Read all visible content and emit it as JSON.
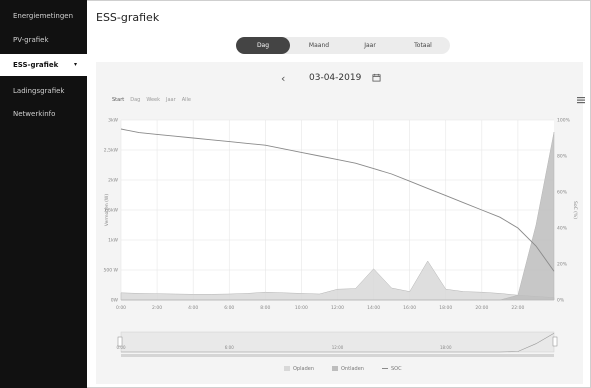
{
  "sidebar": {
    "items": [
      {
        "label": "Energiemetingen",
        "active": false
      },
      {
        "label": "PV-grafiek",
        "active": false
      },
      {
        "label": "ESS-grafiek",
        "active": true
      },
      {
        "label": "Ladingsgrafiek",
        "active": false
      },
      {
        "label": "Netwerkinfo",
        "active": false
      }
    ],
    "active_caret": "▾"
  },
  "page": {
    "title": "ESS-grafiek"
  },
  "tabs": [
    {
      "label": "Dag",
      "active": true
    },
    {
      "label": "Maand",
      "active": false
    },
    {
      "label": "Jaar",
      "active": false
    },
    {
      "label": "Totaal",
      "active": false
    }
  ],
  "date_nav": {
    "prev": "‹",
    "date": "03-04-2019",
    "calendar_icon": "calendar-icon"
  },
  "chart_toolbar": {
    "zoom_options": [
      "Start",
      "Dag",
      "Week",
      "Jaar",
      "Alle"
    ],
    "menu_icon": "hamburger-menu-icon"
  },
  "colors": {
    "sidebar_bg": "#111111",
    "tab_active": "#444444",
    "line": "#8a8a8a",
    "area": "#cfcfcf"
  },
  "chart_data": {
    "type": "area",
    "x_ticks": [
      "0:00",
      "2:00",
      "4:00",
      "6:00",
      "8:00",
      "10:00",
      "12:00",
      "14:00",
      "16:00",
      "18:00",
      "20:00",
      "22:00"
    ],
    "y_left_ticks": [
      "0W",
      "500 W",
      "1kW",
      "1,5kW",
      "2kW",
      "2,5kW",
      "3kW"
    ],
    "y_right_ticks": [
      "0%",
      "20%",
      "40%",
      "60%",
      "80%",
      "100%"
    ],
    "ylabel_left": "Vermogen (W)",
    "ylabel_right": "SoC (%)",
    "x_hours": [
      0,
      1,
      2,
      3,
      4,
      5,
      6,
      7,
      8,
      9,
      10,
      11,
      12,
      13,
      14,
      15,
      16,
      17,
      18,
      19,
      20,
      21,
      22,
      23,
      24
    ],
    "series": [
      {
        "name": "Opladen",
        "kind": "area",
        "values": [
          120,
          110,
          105,
          100,
          95,
          95,
          100,
          110,
          130,
          120,
          110,
          100,
          180,
          190,
          520,
          200,
          140,
          650,
          180,
          140,
          130,
          110,
          80,
          60,
          40
        ]
      },
      {
        "name": "Ontladen",
        "kind": "area",
        "values": [
          0,
          0,
          0,
          0,
          0,
          0,
          0,
          0,
          0,
          0,
          0,
          0,
          0,
          0,
          0,
          0,
          0,
          0,
          0,
          0,
          0,
          0,
          80,
          1250,
          2800
        ]
      },
      {
        "name": "SOC",
        "kind": "line",
        "values": [
          95,
          93,
          92,
          91,
          90,
          89,
          88,
          87,
          86,
          84,
          82,
          80,
          78,
          76,
          73,
          70,
          66,
          62,
          58,
          54,
          50,
          46,
          40,
          30,
          16
        ]
      }
    ],
    "ylim_left": [
      0,
      3000
    ],
    "ylim_right": [
      0,
      100
    ],
    "legend": [
      "Opladen",
      "Ontladen",
      "SOC"
    ],
    "navigator_ticks": [
      "0:00",
      "6:00",
      "12:00",
      "18:00"
    ]
  }
}
